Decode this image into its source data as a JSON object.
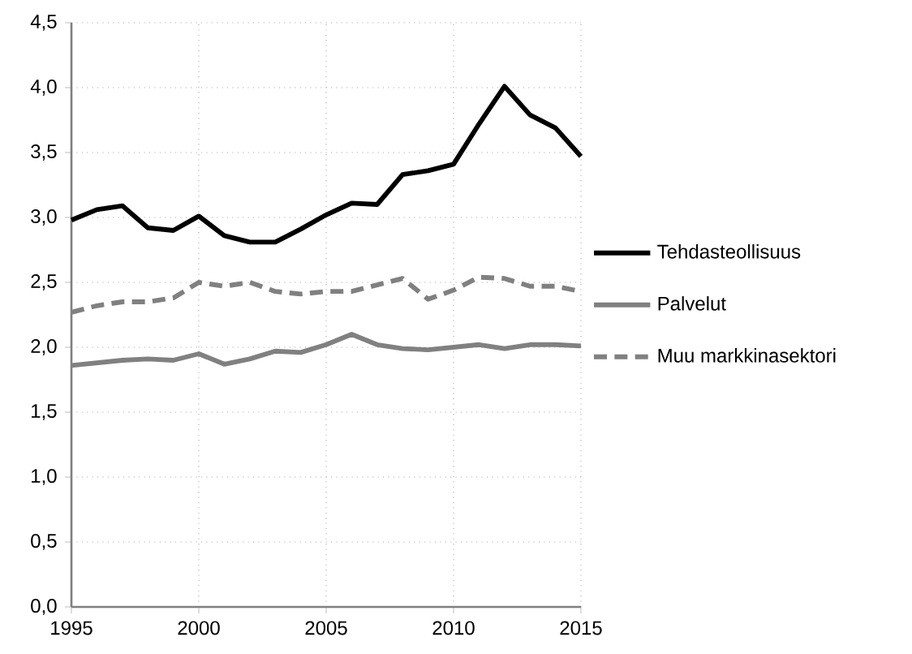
{
  "chart_data": {
    "type": "line",
    "x": [
      1995,
      1996,
      1997,
      1998,
      1999,
      2000,
      2001,
      2002,
      2003,
      2004,
      2005,
      2006,
      2007,
      2008,
      2009,
      2010,
      2011,
      2012,
      2013,
      2014,
      2015
    ],
    "series": [
      {
        "name": "Tehdasteollisuus",
        "color": "#000000",
        "line_style": "solid",
        "values": [
          2.98,
          3.06,
          3.09,
          2.92,
          2.9,
          3.01,
          2.86,
          2.81,
          2.81,
          2.91,
          3.02,
          3.11,
          3.1,
          3.33,
          3.36,
          3.41,
          3.72,
          4.01,
          3.79,
          3.69,
          3.47
        ]
      },
      {
        "name": "Palvelut",
        "color": "#808080",
        "line_style": "solid",
        "values": [
          1.86,
          1.88,
          1.9,
          1.91,
          1.9,
          1.95,
          1.87,
          1.91,
          1.97,
          1.96,
          2.02,
          2.1,
          2.02,
          1.99,
          1.98,
          2.0,
          2.02,
          1.99,
          2.02,
          2.02,
          2.01
        ]
      },
      {
        "name": "Muu markkinasektori",
        "color": "#808080",
        "line_style": "dashed",
        "values": [
          2.27,
          2.32,
          2.35,
          2.35,
          2.38,
          2.5,
          2.47,
          2.5,
          2.43,
          2.41,
          2.43,
          2.43,
          2.48,
          2.53,
          2.37,
          2.44,
          2.54,
          2.53,
          2.47,
          2.47,
          2.43
        ]
      }
    ],
    "xlim": [
      1995,
      2015
    ],
    "xticks": [
      1995,
      2000,
      2005,
      2010,
      2015
    ],
    "ylim": [
      0,
      4.5
    ],
    "yticks": [
      {
        "value": 0,
        "label": "0,0"
      },
      {
        "value": 0.5,
        "label": "0,5"
      },
      {
        "value": 1,
        "label": "1,0"
      },
      {
        "value": 1.5,
        "label": "1,5"
      },
      {
        "value": 2,
        "label": "2,0"
      },
      {
        "value": 2.5,
        "label": "2,5"
      },
      {
        "value": 3,
        "label": "3,0"
      },
      {
        "value": 3.5,
        "label": "3,5"
      },
      {
        "value": 4,
        "label": "4,0"
      },
      {
        "value": 4.5,
        "label": "4,5"
      }
    ],
    "grid": true,
    "legend": "right",
    "marker": "none"
  }
}
